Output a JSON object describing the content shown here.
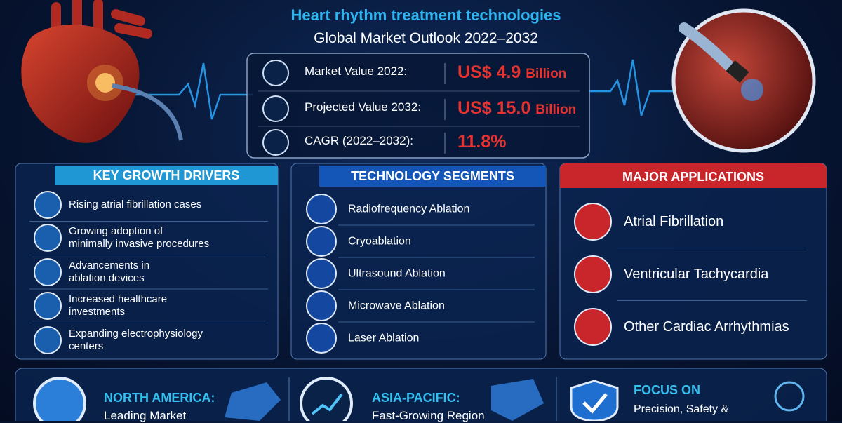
{
  "header": {
    "title": "Heart rhythm treatment technologies",
    "subtitle": "Global Market Outlook 2022–2032"
  },
  "stats": [
    {
      "label": "Market Value 2022:",
      "value": "US$ 4.9",
      "unit": "Billion"
    },
    {
      "label": "Projected Value 2032:",
      "value": "US$ 15.0",
      "unit": "Billion"
    },
    {
      "label": "CAGR (2022–2032):",
      "value": "11.8%"
    }
  ],
  "panels": [
    {
      "title": "KEY GROWTH DRIVERS",
      "items": [
        "Rising atrial fibrillation cases",
        "Growing adoption of\nminimally invasive procedures",
        "Advancements in\nablation devices",
        "Increased healthcare\ninvestments",
        "Expanding electrophysiology\ncenters"
      ]
    },
    {
      "title": "TECHNOLOGY SEGMENTS",
      "items": [
        "Radiofrequency Ablation",
        "Cryoablation",
        "Ultrasound Ablation",
        "Microwave Ablation",
        "Laser Ablation"
      ]
    },
    {
      "title": "MAJOR APPLICATIONS",
      "items": [
        "Atrial Fibrillation",
        "Ventricular Tachycardia",
        "Other Cardiac Arrhythmias"
      ]
    }
  ],
  "footer": [
    {
      "heading": "NORTH AMERICA:",
      "text": "Leading Market"
    },
    {
      "heading": "ASIA-PACIFIC:",
      "text": "Fast-Growing Region"
    },
    {
      "heading": "FOCUS ON",
      "text": "Precision, Safety &"
    }
  ]
}
